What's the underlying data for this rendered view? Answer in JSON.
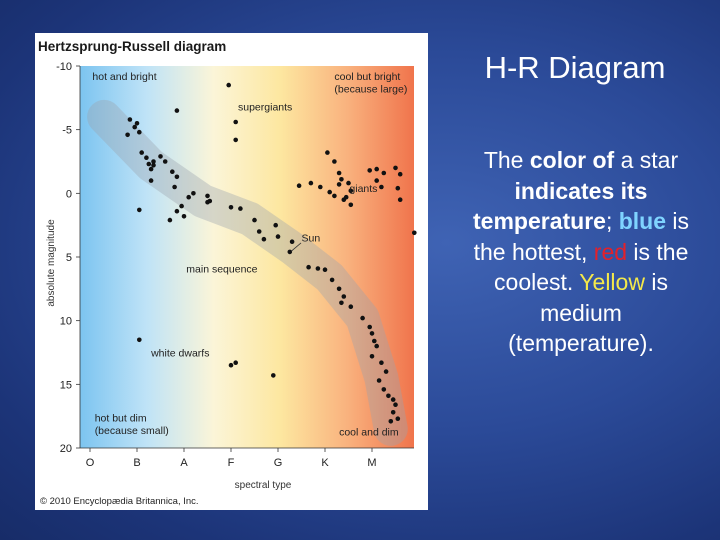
{
  "slide": {
    "title": "H-R Diagram",
    "body": {
      "p1": "The ",
      "p2": "color of",
      "p3": " a star ",
      "p4": "indicates its temperature",
      "p5": "; ",
      "blue": "blue",
      "p6": " is the hottest, ",
      "red": "red",
      "p7": " is the coolest. ",
      "yellow": "Yellow",
      "p8": " is medium (temperature)."
    },
    "colors": {
      "background": "#2b4a98",
      "blue_word": "#7fd4ff",
      "red_word": "#e4202a",
      "yellow_word": "#f4e94a"
    }
  },
  "chart_data": {
    "type": "scatter",
    "title": "Hertzsprung-Russell diagram",
    "xlabel": "spectral type",
    "ylabel": "absolute magnitude",
    "x_categories": [
      "O",
      "B",
      "A",
      "F",
      "G",
      "K",
      "M"
    ],
    "ylim": [
      -10,
      20
    ],
    "y_ticks": [
      "-10",
      "-5",
      "0",
      "5",
      "10",
      "15",
      "20"
    ],
    "y_inverted": true,
    "background_gradient": [
      "#7cc4f0",
      "#bfe3f7",
      "#fbf5d8",
      "#fde7a0",
      "#f9b27e",
      "#f0744c"
    ],
    "annotations": [
      {
        "text": "hot and bright",
        "x": 0.05,
        "y": -8.9
      },
      {
        "text": "cool but bright",
        "x": 5.2,
        "y": -8.9
      },
      {
        "text": "(because large)",
        "x": 5.2,
        "y": -7.9
      },
      {
        "text": "supergiants",
        "x": 3.15,
        "y": -6.5
      },
      {
        "text": "giants",
        "x": 5.52,
        "y": -0.1
      },
      {
        "text": "Sun",
        "x": 4.5,
        "y": 3.8
      },
      {
        "text": "main sequence",
        "x": 2.05,
        "y": 6.2
      },
      {
        "text": "white dwarfs",
        "x": 1.3,
        "y": 12.8
      },
      {
        "text": "hot but dim",
        "x": 0.1,
        "y": 17.9
      },
      {
        "text": "(because small)",
        "x": 0.1,
        "y": 18.9
      },
      {
        "text": "cool and dim",
        "x": 5.3,
        "y": 19.0
      }
    ],
    "series": [
      {
        "points": [
          [
            2.95,
            -8.5
          ],
          [
            1.85,
            -6.5
          ],
          [
            3.1,
            -5.6
          ],
          [
            3.1,
            -4.2
          ],
          [
            0.85,
            -5.8
          ],
          [
            0.95,
            -5.2
          ],
          [
            1.0,
            -5.5
          ],
          [
            0.8,
            -4.6
          ],
          [
            1.05,
            -4.8
          ],
          [
            1.1,
            -3.2
          ],
          [
            1.2,
            -2.8
          ],
          [
            1.25,
            -2.3
          ],
          [
            1.35,
            -2.5
          ],
          [
            1.3,
            -1.9
          ],
          [
            1.35,
            -2.2
          ],
          [
            1.5,
            -2.9
          ],
          [
            1.6,
            -2.5
          ],
          [
            1.75,
            -1.7
          ],
          [
            1.85,
            -1.3
          ],
          [
            1.8,
            -0.5
          ],
          [
            1.3,
            -1.0
          ],
          [
            2.5,
            0.2
          ],
          [
            2.55,
            0.6
          ],
          [
            2.1,
            0.3
          ],
          [
            2.2,
            0.0
          ],
          [
            2.5,
            0.7
          ],
          [
            1.95,
            1.0
          ],
          [
            1.85,
            1.4
          ],
          [
            1.05,
            1.3
          ],
          [
            2.0,
            1.8
          ],
          [
            1.7,
            2.1
          ],
          [
            3.0,
            1.1
          ],
          [
            3.2,
            1.2
          ],
          [
            3.5,
            2.1
          ],
          [
            3.6,
            3.0
          ],
          [
            3.7,
            3.6
          ],
          [
            3.95,
            2.5
          ],
          [
            4.0,
            3.4
          ],
          [
            4.3,
            3.8
          ],
          [
            4.25,
            4.6
          ],
          [
            4.65,
            5.8
          ],
          [
            4.85,
            5.9
          ],
          [
            5.0,
            6.0
          ],
          [
            5.15,
            6.8
          ],
          [
            5.3,
            7.5
          ],
          [
            5.4,
            8.1
          ],
          [
            5.35,
            8.6
          ],
          [
            5.55,
            8.9
          ],
          [
            5.8,
            9.8
          ],
          [
            5.95,
            10.5
          ],
          [
            6.0,
            11.0
          ],
          [
            6.05,
            11.6
          ],
          [
            6.1,
            12.0
          ],
          [
            6.0,
            12.8
          ],
          [
            6.2,
            13.3
          ],
          [
            6.3,
            14.0
          ],
          [
            6.15,
            14.7
          ],
          [
            6.25,
            15.4
          ],
          [
            6.35,
            15.9
          ],
          [
            6.45,
            16.2
          ],
          [
            6.5,
            16.6
          ],
          [
            6.45,
            17.2
          ],
          [
            6.55,
            17.7
          ],
          [
            6.4,
            17.9
          ],
          [
            5.05,
            -3.2
          ],
          [
            5.2,
            -2.5
          ],
          [
            5.3,
            -1.6
          ],
          [
            5.35,
            -1.1
          ],
          [
            5.5,
            -0.8
          ],
          [
            5.45,
            0.3
          ],
          [
            5.55,
            -0.2
          ],
          [
            5.95,
            -1.8
          ],
          [
            6.1,
            -1.9
          ],
          [
            6.25,
            -1.6
          ],
          [
            6.1,
            -1.0
          ],
          [
            6.2,
            -0.5
          ],
          [
            6.5,
            -2.0
          ],
          [
            6.6,
            -1.5
          ],
          [
            6.55,
            -0.4
          ],
          [
            6.6,
            0.5
          ],
          [
            6.9,
            3.1
          ],
          [
            4.7,
            -0.8
          ],
          [
            4.9,
            -0.5
          ],
          [
            5.1,
            -0.1
          ],
          [
            5.2,
            0.2
          ],
          [
            4.45,
            -0.6
          ],
          [
            5.3,
            -0.7
          ],
          [
            5.4,
            0.5
          ],
          [
            5.55,
            0.9
          ],
          [
            1.05,
            11.5
          ],
          [
            3.0,
            13.5
          ],
          [
            3.1,
            13.3
          ],
          [
            3.9,
            14.3
          ]
        ]
      }
    ],
    "copyright": "© 2010 Encyclopædia Britannica, Inc."
  }
}
